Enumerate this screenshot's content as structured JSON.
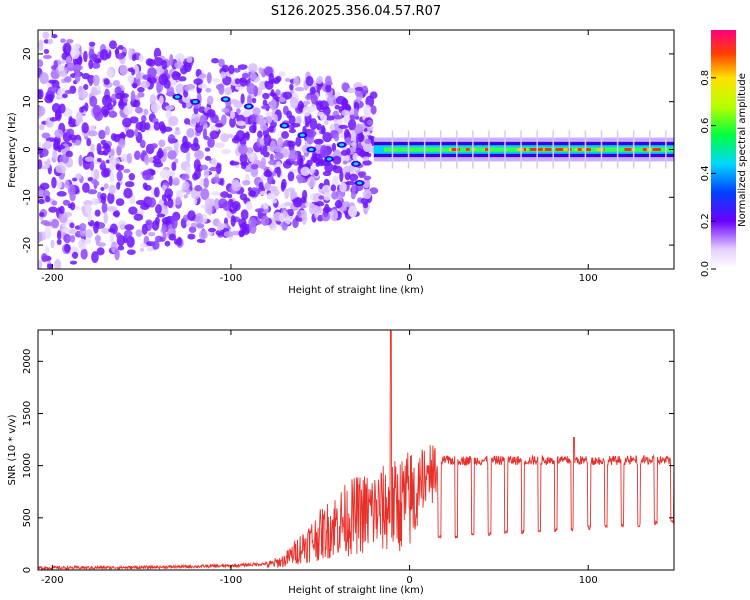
{
  "title": "S126.2025.356.04.57.R07",
  "chart_data": [
    {
      "type": "heatmap",
      "name": "spectrogram",
      "xlabel": "Height of straight line (km)",
      "ylabel": "Frequency (Hz)",
      "xlim": [
        -208,
        148
      ],
      "ylim": [
        -25,
        25
      ],
      "x_ticks": [
        -200,
        -100,
        0,
        100
      ],
      "y_ticks": [
        20,
        10,
        0,
        -10,
        -20
      ],
      "colorbar": {
        "label": "Normalized spectral amplitude",
        "range": [
          0.0,
          1.0
        ],
        "ticks": [
          "0.0",
          "0.2",
          "0.4",
          "0.6",
          "0.8"
        ]
      },
      "features": {
        "carrier_line_hz": 0,
        "clean_carrier_from_km": -20,
        "scatter_region_km": [
          -208,
          -20
        ]
      }
    },
    {
      "type": "line",
      "name": "snr",
      "xlabel": "Height of straight line (km)",
      "ylabel": "SNR (10 * v/v)",
      "xlim": [
        -208,
        148
      ],
      "ylim": [
        0,
        2300
      ],
      "x_ticks": [
        -200,
        -100,
        0,
        100
      ],
      "y_ticks": [
        0,
        500,
        1000,
        1500,
        2000
      ],
      "color": "#e8302a",
      "series": [
        {
          "name": "SNR",
          "x": [
            -208,
            -150,
            -100,
            -80,
            -70,
            -60,
            -50,
            -40,
            -30,
            -20,
            -10,
            0,
            10,
            20,
            30,
            40,
            50,
            60,
            70,
            80,
            90,
            100,
            110,
            120,
            130,
            140,
            148
          ],
          "values": [
            20,
            25,
            40,
            60,
            120,
            300,
            450,
            600,
            700,
            750,
            800,
            900,
            1000,
            1050,
            1100,
            1130,
            1140,
            1150,
            1140,
            1140,
            1150,
            1120,
            1110,
            1110,
            1100,
            1100,
            1050
          ]
        }
      ],
      "peaks": [
        {
          "x": -10.5,
          "y": 2290
        },
        {
          "x": 92,
          "y": 1270
        }
      ]
    }
  ]
}
